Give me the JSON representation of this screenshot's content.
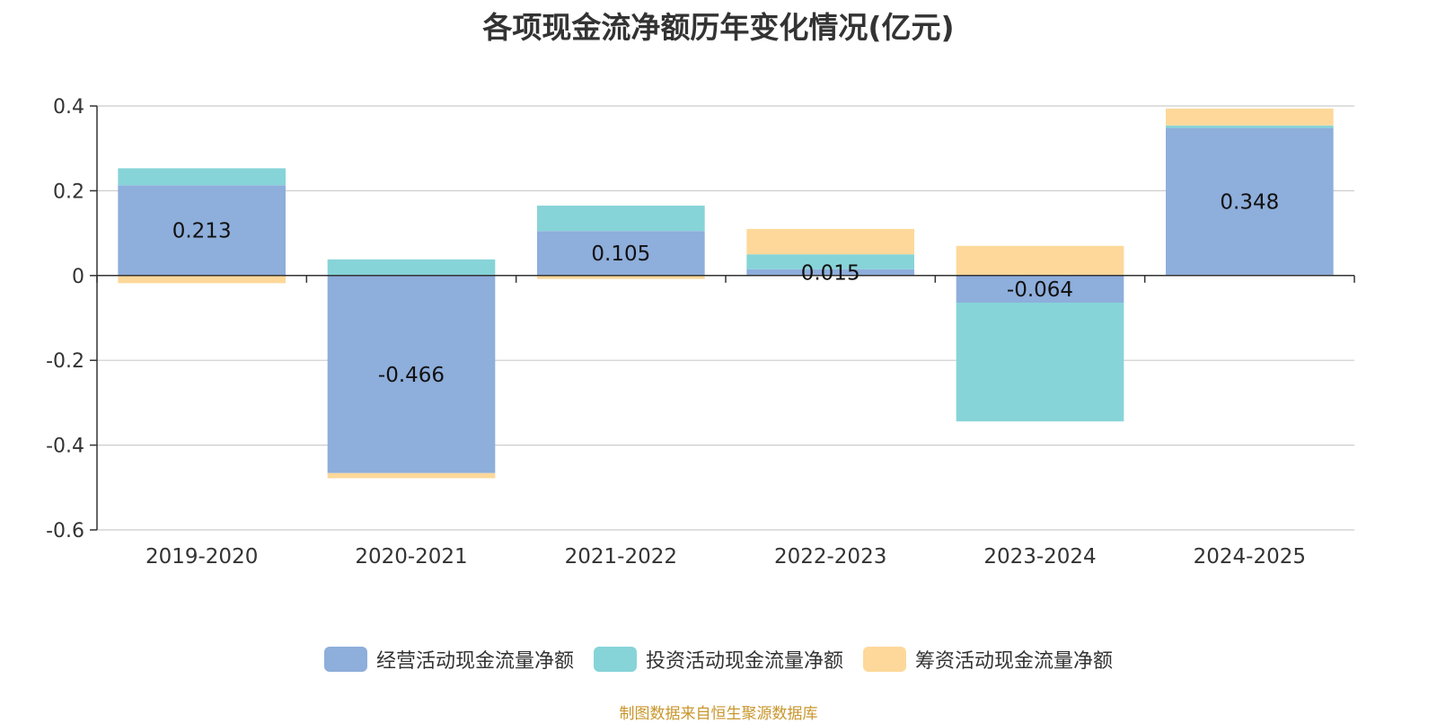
{
  "chart_data": {
    "type": "bar",
    "stacked": true,
    "title": "各项现金流净额历年变化情况(亿元)",
    "categories": [
      "2019-2020",
      "2020-2021",
      "2021-2022",
      "2022-2023",
      "2023-2024",
      "2024-2025"
    ],
    "series": [
      {
        "name": "经营活动现金流量净额",
        "color": "#8eaedb",
        "values": [
          0.213,
          -0.466,
          0.105,
          0.015,
          -0.064,
          0.348
        ]
      },
      {
        "name": "投资活动现金流量净额",
        "color": "#86d4d8",
        "values": [
          0.04,
          0.038,
          0.06,
          0.035,
          -0.28,
          0.006
        ]
      },
      {
        "name": "筹资活动现金流量净额",
        "color": "#fdd89a",
        "values": [
          -0.018,
          -0.012,
          -0.008,
          0.06,
          0.07,
          0.04
        ]
      }
    ],
    "data_labels": [
      "0.213",
      "-0.466",
      "0.105",
      "0.015",
      "-0.064",
      "0.348"
    ],
    "ylim": [
      -0.6,
      0.4
    ],
    "yticks": [
      0.4,
      0.2,
      0,
      -0.2,
      -0.4,
      -0.6
    ],
    "ytick_labels": [
      "0.4",
      "0.2",
      "0",
      "-0.2",
      "-0.4",
      "-0.6"
    ],
    "grid": true,
    "legend_position": "bottom"
  },
  "footer": {
    "source": "制图数据来自恒生聚源数据库"
  }
}
